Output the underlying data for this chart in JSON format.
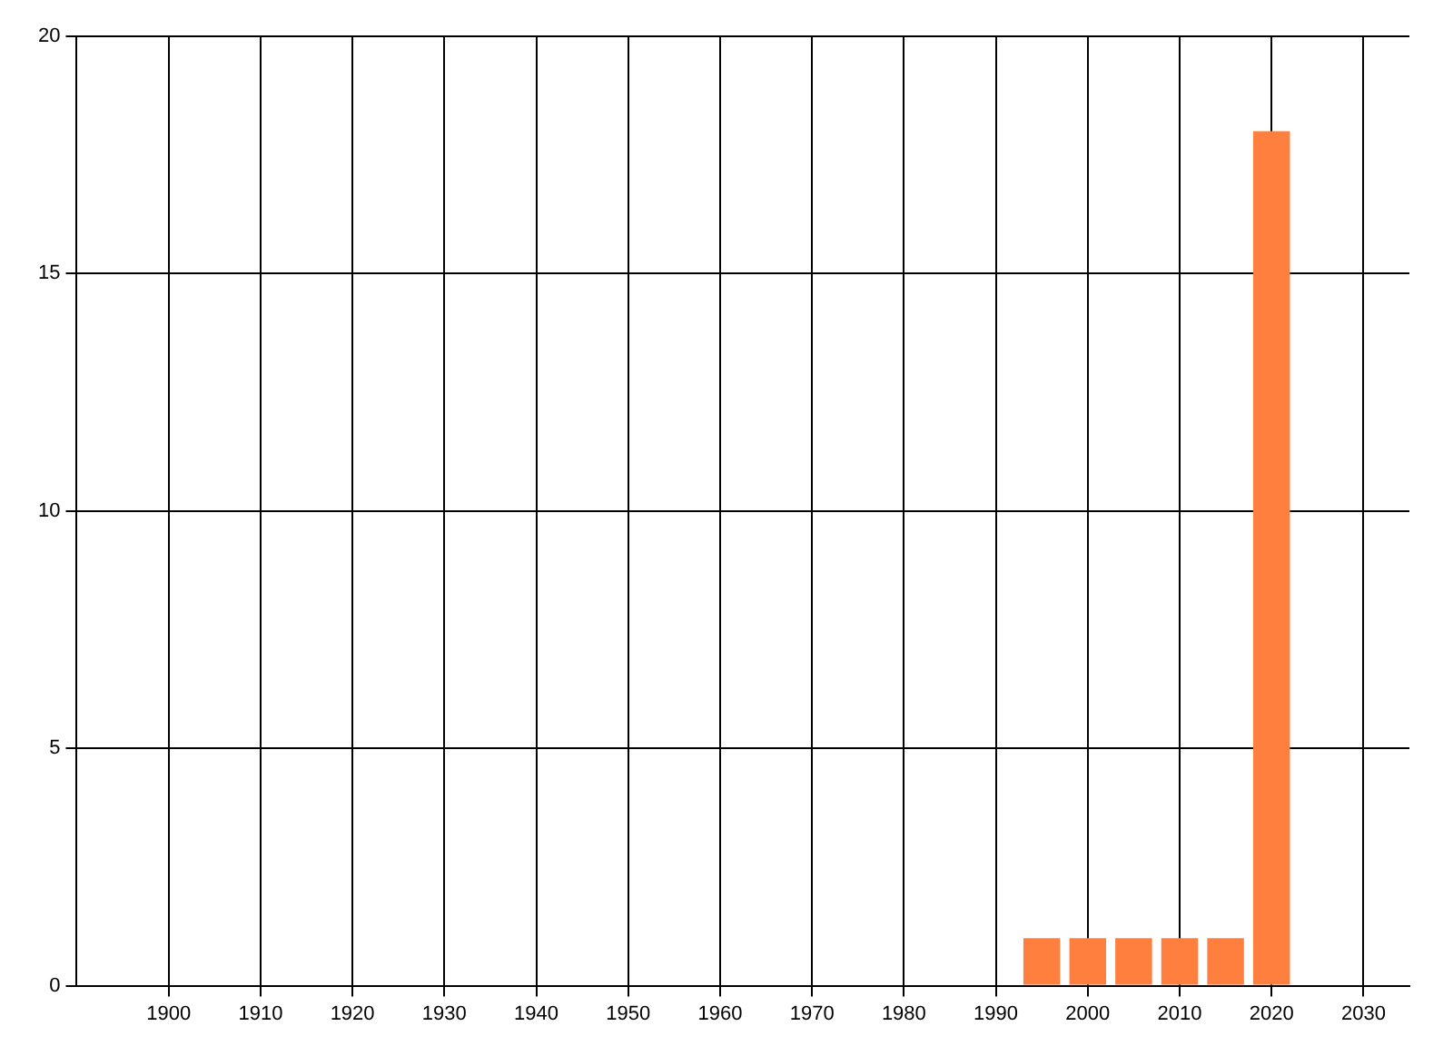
{
  "chart_data": {
    "type": "bar",
    "x": [
      1995,
      2000,
      2005,
      2010,
      2015,
      2020
    ],
    "values": [
      1,
      1,
      1,
      1,
      1,
      18
    ],
    "color": "#ff7f3f",
    "xlim": [
      1890,
      2035
    ],
    "xticks": [
      1900,
      1910,
      1920,
      1930,
      1940,
      1950,
      1960,
      1970,
      1980,
      1990,
      2000,
      2010,
      2020,
      2030
    ],
    "ylim": [
      0,
      20
    ],
    "yticks": [
      0,
      5,
      10,
      15,
      20
    ],
    "grid": true,
    "legend": false
  }
}
